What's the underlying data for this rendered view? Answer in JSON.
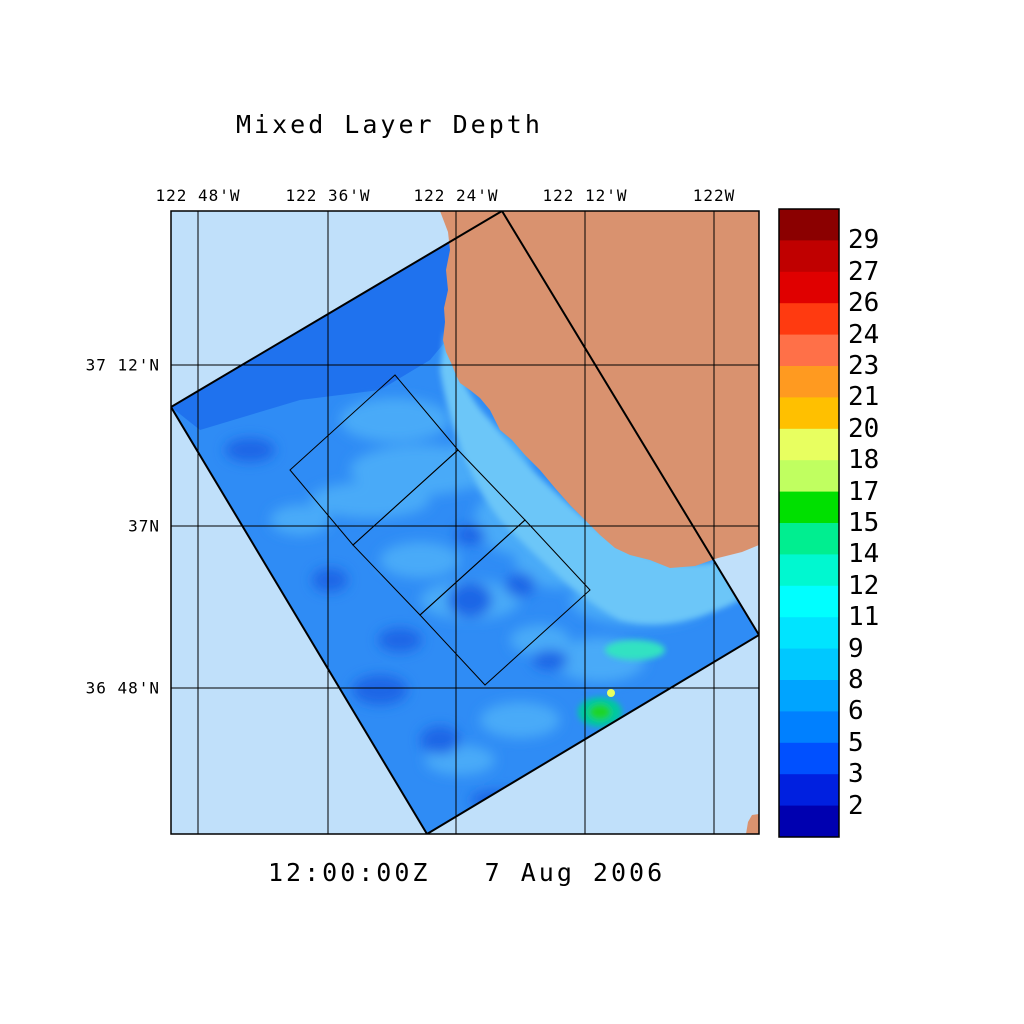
{
  "title": "Mixed Layer Depth",
  "timestamp": "12:00:00Z   7 Aug 2006",
  "longitude_labels": [
    "122 48'W",
    "122 36'W",
    "122 24'W",
    "122 12'W",
    "122W"
  ],
  "latitude_labels": [
    "37 12'N",
    "37N",
    "36 48'N"
  ],
  "colorbar": {
    "labels": [
      "29",
      "27",
      "26",
      "24",
      "23",
      "21",
      "20",
      "18",
      "17",
      "15",
      "14",
      "12",
      "11",
      "9",
      "8",
      "6",
      "5",
      "3",
      "2"
    ],
    "colors": [
      "#8b0000",
      "#c00000",
      "#e00000",
      "#ff3a10",
      "#ff7048",
      "#ff9a20",
      "#ffc000",
      "#e8ff60",
      "#c0ff60",
      "#00e000",
      "#00ee90",
      "#00f8d0",
      "#00ffff",
      "#00e4ff",
      "#00c8ff",
      "#00a4ff",
      "#0080ff",
      "#0050ff",
      "#0020e0",
      "#0000b0"
    ]
  },
  "colors": {
    "ocean_outside": "#c0e0fa",
    "land": "#d9926f",
    "field_base": "#2f8cf5",
    "field_light": "#4aaaf8",
    "field_dark": "#1f66e6",
    "grid": "#000000"
  }
}
